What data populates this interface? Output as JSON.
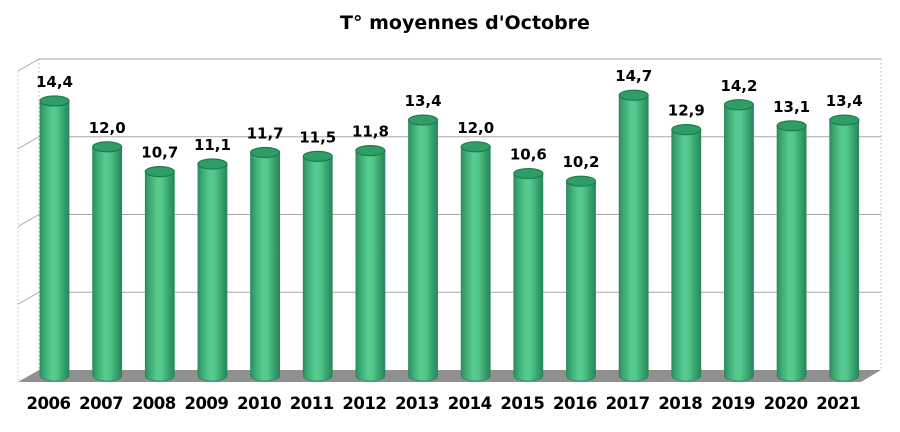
{
  "chart_data": {
    "type": "bar",
    "subtype": "cylinder-3d",
    "title": "T° moyennes d'Octobre",
    "xlabel": "",
    "ylabel": "",
    "categories": [
      "2006",
      "2007",
      "2008",
      "2009",
      "2010",
      "2011",
      "2012",
      "2013",
      "2014",
      "2015",
      "2016",
      "2017",
      "2018",
      "2019",
      "2020",
      "2021"
    ],
    "values": [
      14.4,
      12.0,
      10.7,
      11.1,
      11.7,
      11.5,
      11.8,
      13.4,
      12.0,
      10.6,
      10.2,
      14.7,
      12.9,
      14.2,
      13.1,
      13.4
    ],
    "value_labels": [
      "14,4",
      "12,0",
      "10,7",
      "11,1",
      "11,7",
      "11,5",
      "11,8",
      "13,4",
      "12,0",
      "10,6",
      "10,2",
      "14,7",
      "12,9",
      "14,2",
      "13,1",
      "13,4"
    ],
    "ylim": [
      0,
      16
    ],
    "gridline_interval": 4,
    "grid": true,
    "legend": "none",
    "colors": {
      "bar_edge": "#28895b",
      "bar_body_dark": "#2c8f5e",
      "bar_body_light": "#58cc90",
      "bar_top": "#2f9e66",
      "bar_top_edge": "#1d7a4c",
      "gridline": "#a8a8a8",
      "wall_dotted_edge": "#b8b8b8",
      "floor": "#909090",
      "label_color": "#000000",
      "background": "#ffffff"
    }
  }
}
